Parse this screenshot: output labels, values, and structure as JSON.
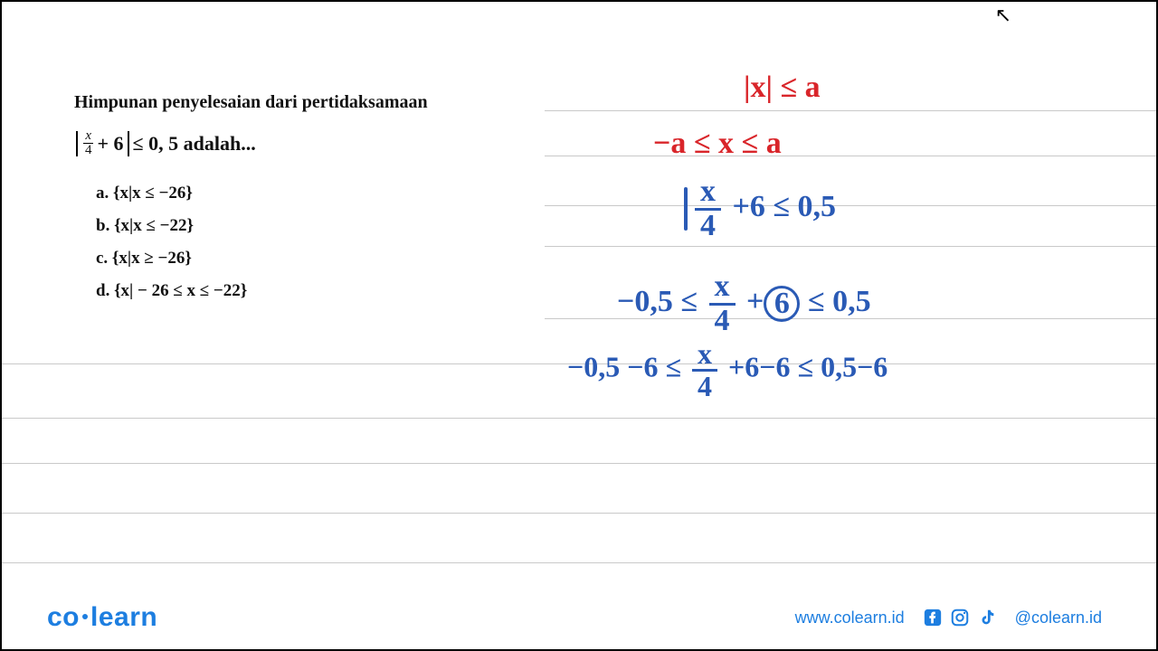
{
  "problem": {
    "title": "Himpunan penyelesaian dari pertidaksamaan",
    "eq_plus": "+ 6",
    "eq_tail": " ≤ 0, 5 adalah...",
    "frac_num": "x",
    "frac_den": "4",
    "options": {
      "a": "a. {x|x ≤ −26}",
      "b": "b. {x|x ≤ −22}",
      "c": "c. {x|x ≥ −26}",
      "d": "d. {x| − 26 ≤ x ≤ −22}"
    }
  },
  "hand": {
    "red1": "|x| ≤ a",
    "red2": "−a  ≤  x  ≤ a",
    "blue1_tail": " +6 ≤ 0,5",
    "blue2_lhs": "−0,5 ≤ ",
    "blue2_plus": " +",
    "blue2_six": "6",
    "blue2_rhs": " ≤ 0,5",
    "blue3_l": "−0,5 −6  ≤ ",
    "blue3_m": " +6−6   ≤ 0,5−6",
    "hx": "x",
    "h4": "4"
  },
  "lines_y": [
    120,
    170,
    225,
    270,
    350,
    400,
    460,
    510,
    565,
    620
  ],
  "footer": {
    "logo_a": "co",
    "logo_b": "learn",
    "site": "www.colearn.id",
    "handle": "@colearn.id"
  },
  "colors": {
    "red": "#d9252a",
    "blue_hand": "#2a5ab5",
    "brand": "#1d7ee0",
    "line": "#c9c9c9"
  }
}
